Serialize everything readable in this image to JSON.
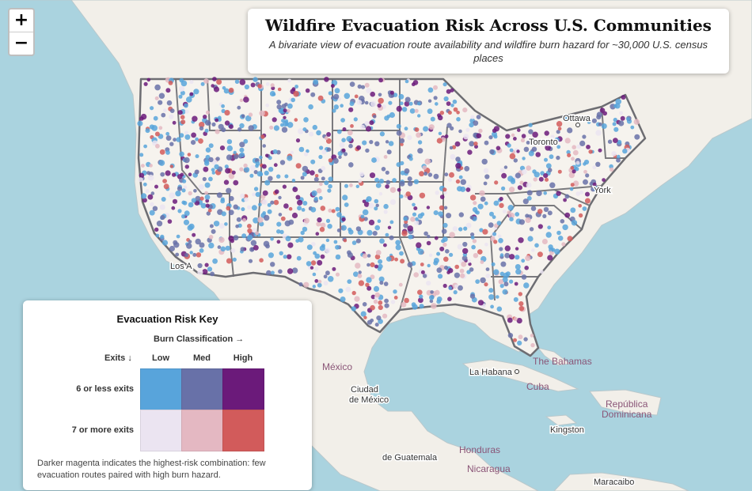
{
  "header": {
    "title": "Wildfire Evacuation Risk Across U.S. Communities",
    "subtitle": "A bivariate view of evacuation route availability and wildfire burn hazard for ~30,000 U.S. census places"
  },
  "zoom_controls": {
    "zoom_in": "+",
    "zoom_out": "−"
  },
  "map_labels": [
    {
      "id": "ottawa",
      "text": "Ottawa"
    },
    {
      "id": "toronto",
      "text": "Toronto"
    },
    {
      "id": "new-york",
      "text": "York"
    },
    {
      "id": "los-angeles",
      "text": "Los A"
    },
    {
      "id": "mexico",
      "text": "México"
    },
    {
      "id": "ciudad-de-mexico",
      "text": "Ciudad\nde México"
    },
    {
      "id": "la-habana",
      "text": "La Habana"
    },
    {
      "id": "bahamas",
      "text": "The Bahamas"
    },
    {
      "id": "cuba",
      "text": "Cuba"
    },
    {
      "id": "republica-dominicana",
      "text": "República\nDominicana"
    },
    {
      "id": "kingston",
      "text": "Kingston"
    },
    {
      "id": "guatemala",
      "text": "de Guatemala"
    },
    {
      "id": "honduras",
      "text": "Honduras"
    },
    {
      "id": "nicaragua",
      "text": "Nicaragua"
    },
    {
      "id": "maracaibo",
      "text": "Maracaibo"
    }
  ],
  "legend": {
    "title": "Evacuation Risk Key",
    "burn_axis": "Burn Classification →",
    "exits_axis": "Exits ↓",
    "columns": [
      "Low",
      "Med",
      "High"
    ],
    "rows": [
      "6 or less exits",
      "7 or more exits"
    ],
    "colors": [
      [
        "#58a4db",
        "#6871a8",
        "#6b1a7a"
      ],
      [
        "#ebe4f1",
        "#e4b8c2",
        "#d25b5b"
      ]
    ],
    "note": "Darker magenta indicates the highest-risk combination: few evacuation routes paired with high burn hazard."
  },
  "palette": {
    "water": "#aad3df",
    "land": "#f2efe9",
    "us_land": "#f6f3ee",
    "border": "#6d6d72"
  }
}
